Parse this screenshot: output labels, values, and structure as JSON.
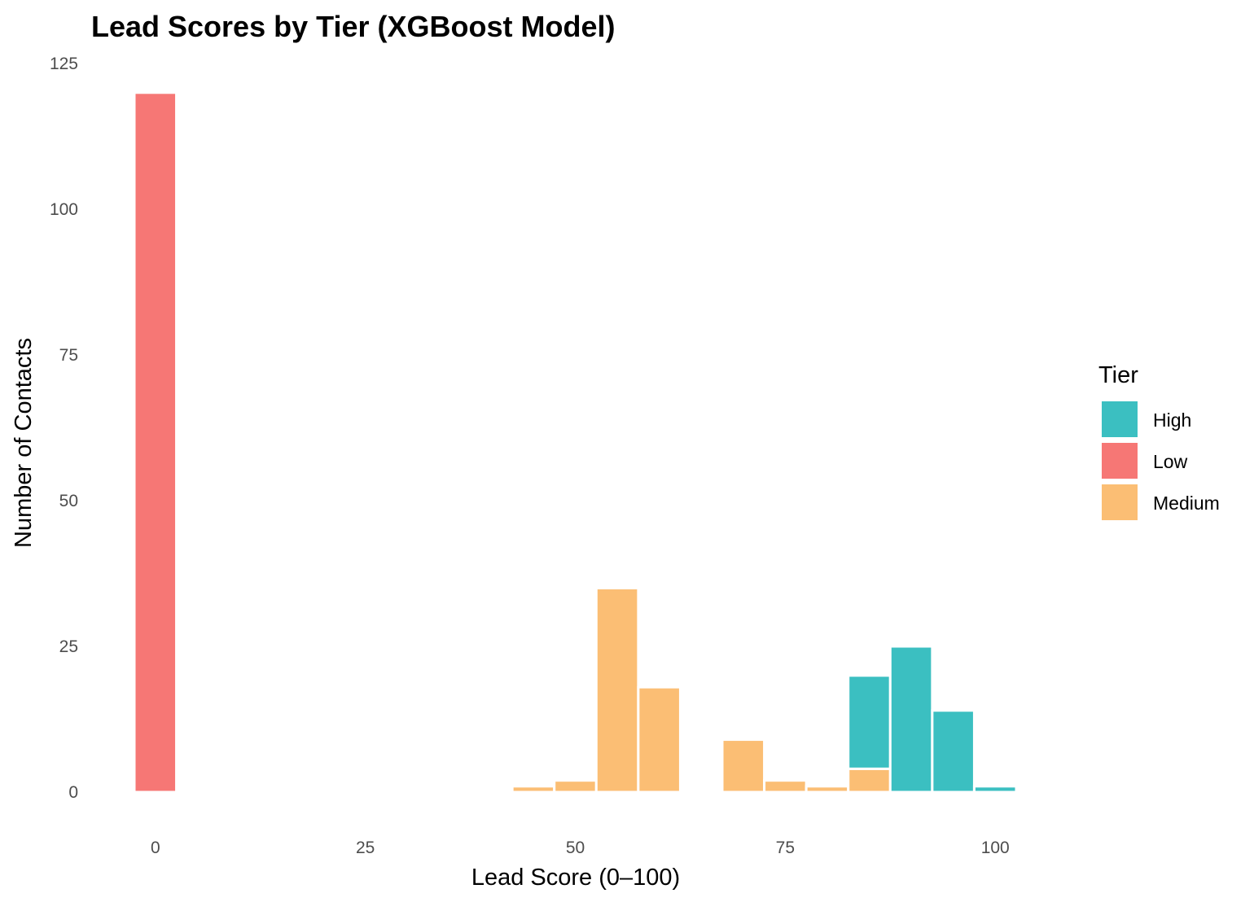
{
  "chart_data": {
    "type": "bar",
    "title": "Lead Scores by Tier (XGBoost Model)",
    "xlabel": "Lead Score (0–100)",
    "ylabel": "Number of Contacts",
    "xlim": [
      -2.5,
      102.5
    ],
    "ylim": [
      0,
      125
    ],
    "x_ticks": [
      0,
      25,
      50,
      75,
      100
    ],
    "y_ticks": [
      0,
      25,
      50,
      75,
      100,
      125
    ],
    "bin_width": 5,
    "stacked": true,
    "grid": false,
    "legend": {
      "title": "Tier",
      "position": "right"
    },
    "series": [
      {
        "name": "High",
        "color": "#3BBFC1",
        "bins": [
          {
            "x": 85,
            "value": 16
          },
          {
            "x": 90,
            "value": 25
          },
          {
            "x": 95,
            "value": 14
          },
          {
            "x": 100,
            "value": 1
          }
        ]
      },
      {
        "name": "Low",
        "color": "#F67775",
        "bins": [
          {
            "x": 0,
            "value": 120
          }
        ]
      },
      {
        "name": "Medium",
        "color": "#FBBE74",
        "bins": [
          {
            "x": 45,
            "value": 1
          },
          {
            "x": 50,
            "value": 2
          },
          {
            "x": 55,
            "value": 35
          },
          {
            "x": 60,
            "value": 18
          },
          {
            "x": 70,
            "value": 9
          },
          {
            "x": 75,
            "value": 2
          },
          {
            "x": 80,
            "value": 1
          },
          {
            "x": 85,
            "value": 4
          }
        ]
      }
    ],
    "stack_order": [
      "Medium",
      "Low",
      "High"
    ]
  }
}
